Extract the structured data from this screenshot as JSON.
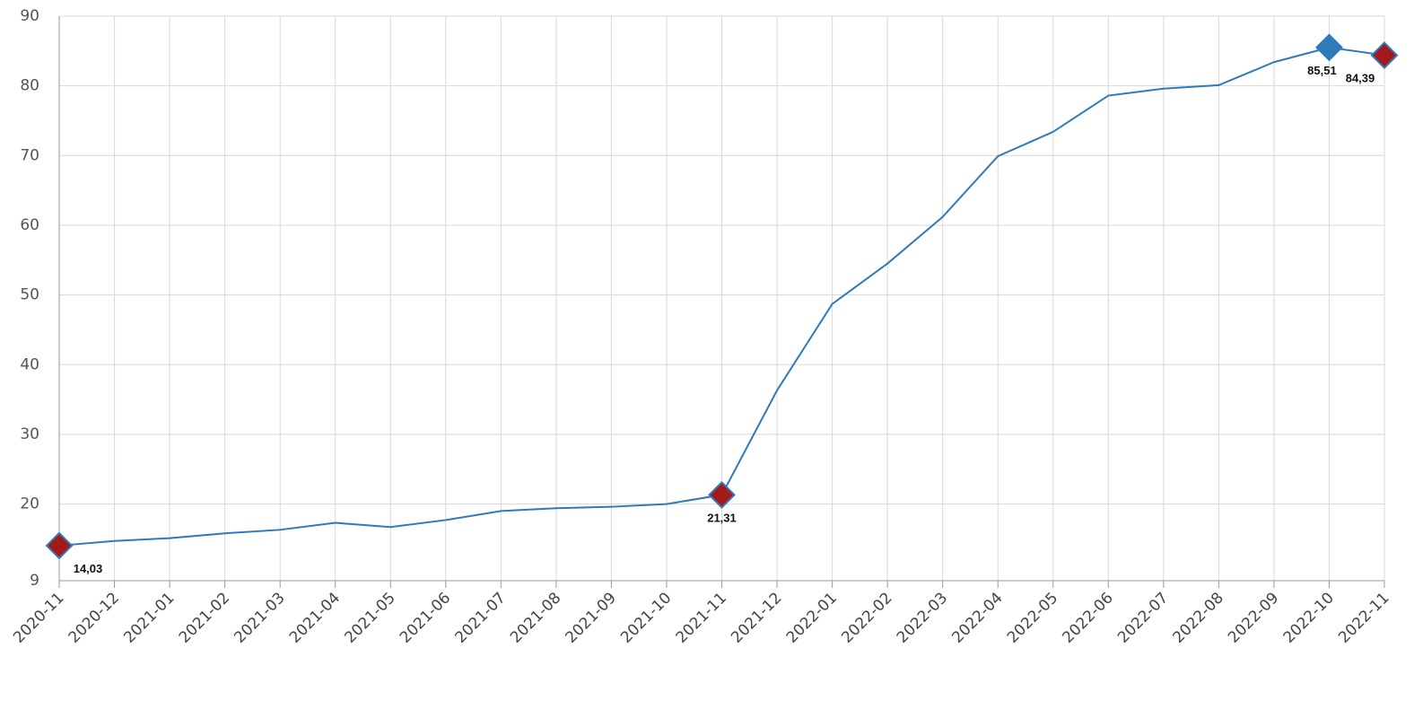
{
  "chart_data": {
    "type": "line",
    "categories": [
      "2020-11",
      "2020-12",
      "2021-01",
      "2021-02",
      "2021-03",
      "2021-04",
      "2021-05",
      "2021-06",
      "2021-07",
      "2021-08",
      "2021-09",
      "2021-10",
      "2021-11",
      "2021-12",
      "2022-01",
      "2022-02",
      "2022-03",
      "2022-04",
      "2022-05",
      "2022-06",
      "2022-07",
      "2022-08",
      "2022-09",
      "2022-10",
      "2022-11"
    ],
    "series": [
      {
        "color": "#2f7ab8",
        "values": [
          14.03,
          14.7,
          15.1,
          15.8,
          16.3,
          17.3,
          16.7,
          17.7,
          19.0,
          19.4,
          19.6,
          20.0,
          21.31,
          36.3,
          48.7,
          54.5,
          61.2,
          69.9,
          73.4,
          78.6,
          79.6,
          80.1,
          83.4,
          85.51,
          84.39
        ],
        "value_labels": [
          "14,03",
          null,
          null,
          null,
          null,
          null,
          null,
          null,
          null,
          null,
          null,
          null,
          "21,31",
          null,
          null,
          null,
          null,
          null,
          null,
          null,
          null,
          null,
          null,
          "85,51",
          "84,39"
        ],
        "marker_colors": [
          "#a31a1a",
          null,
          null,
          null,
          null,
          null,
          null,
          null,
          null,
          null,
          null,
          null,
          "#a31a1a",
          null,
          null,
          null,
          null,
          null,
          null,
          null,
          null,
          null,
          null,
          "#2f7ab8",
          "#a31a1a"
        ]
      }
    ],
    "ylim": [
      9,
      90
    ],
    "yticks": [
      9,
      20,
      30,
      40,
      50,
      60,
      70,
      80,
      90
    ],
    "grid": true
  }
}
